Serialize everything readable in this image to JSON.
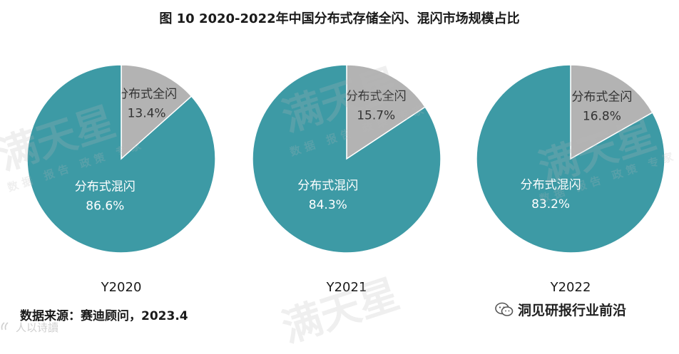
{
  "title": "图 10 2020-2022年中国分布式存储全闪、混闪市场规模占比",
  "source": "数据来源：赛迪顾问，2023.4",
  "brand": {
    "label": "洞见研报行业前沿",
    "icon": "wechat-icon"
  },
  "corner_mark": {
    "label": "人以诗讀",
    "icon": "logo-icon"
  },
  "watermark": {
    "big": "满天星",
    "small": "数据 报告 政策 专家"
  },
  "colors": {
    "teal": "#3d9aa5",
    "gray": "#b3b3b3",
    "label_on_teal": "#ffffff",
    "label_on_gray": "#333333"
  },
  "chart_data": [
    {
      "type": "pie",
      "xlabel": "Y2020",
      "slices": [
        {
          "label": "分布式全闪",
          "value": 13.4,
          "display": "13.4%"
        },
        {
          "label": "分布式混闪",
          "value": 86.6,
          "display": "86.6%"
        }
      ]
    },
    {
      "type": "pie",
      "xlabel": "Y2021",
      "slices": [
        {
          "label": "分布式全闪",
          "value": 15.7,
          "display": "15.7%"
        },
        {
          "label": "分布式混闪",
          "value": 84.3,
          "display": "84.3%"
        }
      ]
    },
    {
      "type": "pie",
      "xlabel": "Y2022",
      "slices": [
        {
          "label": "分布式全闪",
          "value": 16.8,
          "display": "16.8%"
        },
        {
          "label": "分布式混闪",
          "value": 83.2,
          "display": "83.2%"
        }
      ]
    }
  ]
}
